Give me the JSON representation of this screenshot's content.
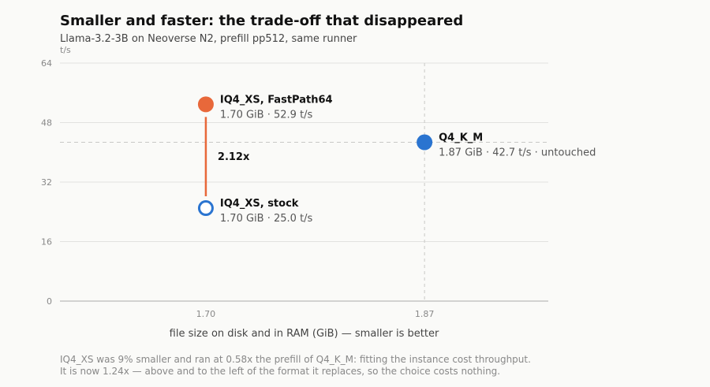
{
  "title": "Smaller and faster: the trade-off that disappeared",
  "subtitle": "Llama-3.2-3B on Neoverse N2, prefill pp512, same runner",
  "footnote": [
    "IQ4_XS was 9% smaller and ran at 0.58x the prefill of Q4_K_M: fitting the instance cost throughput.",
    "It is now 1.24x — above and to the left of the format it replaces, so the choice costs nothing."
  ],
  "chart_data": {
    "type": "scatter",
    "ylabel": "t/s",
    "xlabel": "file size on disk and in RAM (GiB) — smaller is better",
    "ylim": [
      0,
      64
    ],
    "yticks": [
      0,
      16,
      32,
      48,
      64
    ],
    "xticks": [
      1.7,
      1.87
    ],
    "xtick_labels": [
      "1.70",
      "1.87"
    ],
    "grid": true,
    "reference_line": {
      "y": 42.7
    },
    "reference_vline": {
      "x": 1.87
    },
    "points": [
      {
        "name": "IQ4_XS, FastPath64",
        "detail": "1.70 GiB · 52.9 t/s",
        "x": 1.7,
        "y": 52.9,
        "color": "#e8683a",
        "filled": true
      },
      {
        "name": "IQ4_XS, stock",
        "detail": "1.70 GiB · 25.0 t/s",
        "x": 1.7,
        "y": 25.0,
        "color": "#2a74d0",
        "filled": false
      },
      {
        "name": "Q4_K_M",
        "detail": "1.87 GiB · 42.7 t/s · untouched",
        "x": 1.87,
        "y": 42.7,
        "color": "#2a74d0",
        "filled": true
      }
    ],
    "annotations": [
      {
        "text": "2.12x",
        "x": 1.7,
        "y_from": 25.0,
        "y_to": 52.9,
        "color": "#e8683a"
      }
    ]
  }
}
